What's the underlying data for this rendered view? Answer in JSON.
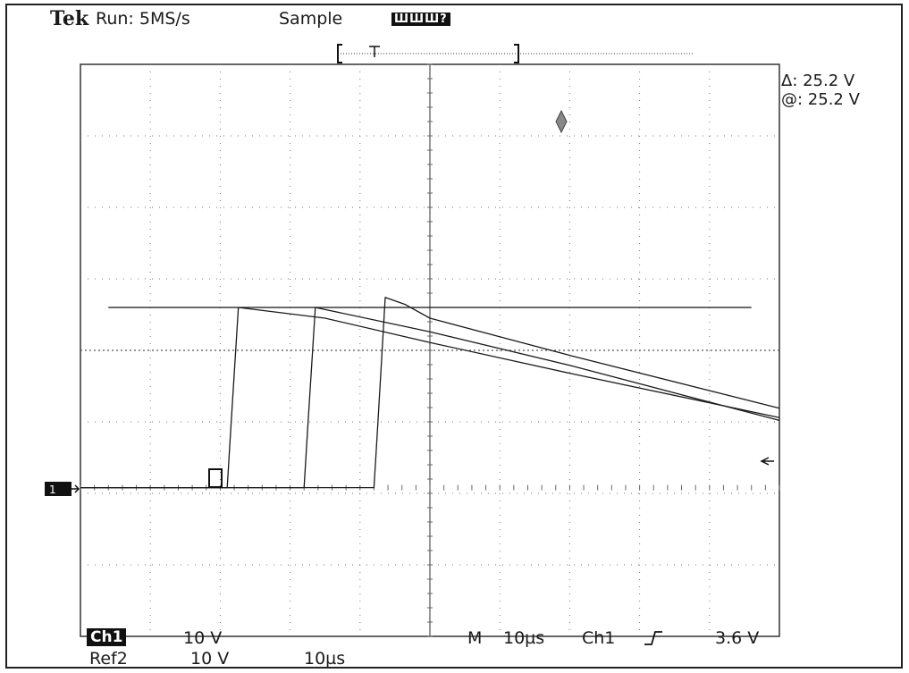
{
  "header": {
    "brand": "Tek",
    "run_status": "Run: 5MS/s",
    "mode": "Sample",
    "badge": "ШШШ?"
  },
  "readout": {
    "delta": "Δ: 25.2 V",
    "at": "@: 25.2 V"
  },
  "footer": {
    "ch1_label": "Ch1",
    "ch1_scale": "10 V",
    "ref2_label": "Ref2",
    "ref2_scale": "10 V",
    "ref2_time": "10µs",
    "main_time_prefix": "M",
    "main_time": "10µs",
    "trigger_source": "Ch1",
    "trigger_slope_icon": "rising-edge-icon",
    "trigger_level": "3.6 V"
  },
  "chart_data": {
    "type": "line",
    "title": "",
    "xlabel": "",
    "ylabel": "",
    "x_unit": "µs",
    "y_unit": "V",
    "xlim": [
      -50,
      50
    ],
    "ylim": [
      -20.8,
      59.2
    ],
    "grid": true,
    "cursor_level_v": 25.2,
    "trigger_level_v": 3.6,
    "series": [
      {
        "x": [
          -50,
          -29,
          -28.5,
          -27.4,
          -15,
          0,
          20,
          50
        ],
        "y": [
          0,
          0,
          8,
          25.2,
          23.7,
          20.3,
          16.0,
          9.8
        ]
      },
      {
        "x": [
          -50,
          -18,
          -17.5,
          -16.4,
          0,
          20,
          50
        ],
        "y": [
          0,
          0,
          8,
          25.2,
          21.8,
          17.1,
          9.4
        ]
      },
      {
        "x": [
          -50,
          -8,
          -7.5,
          -6.4,
          -3.5,
          0,
          20,
          50
        ],
        "y": [
          0,
          0,
          8,
          26.6,
          25.6,
          23.7,
          18.5,
          11.1
        ]
      }
    ]
  }
}
